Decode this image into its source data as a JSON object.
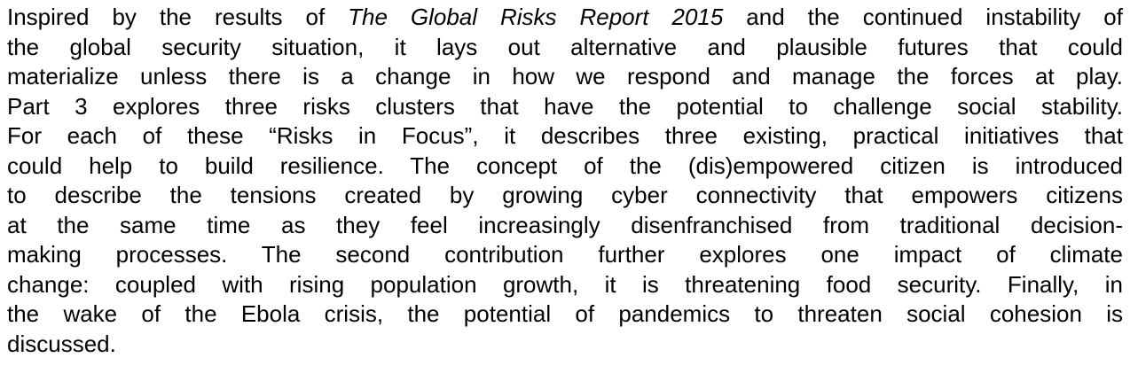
{
  "paragraph": {
    "lines": [
      [
        "Inspired by the results of ",
        "The Global Risks Report 2015",
        " and the continued instability of"
      ],
      "the global security situation, it lays out alternative and plausible futures that could",
      "materialize unless there is a change in how we respond and manage the forces at play.",
      "Part 3 explores three risks clusters that have the potential to challenge social stability.",
      "For each of these “Risks in Focus”, it describes three existing, practical initiatives that",
      "could help to build resilience. The concept of the (dis)empowered citizen is introduced",
      "to describe the tensions created by growing cyber connectivity that empowers citizens",
      "at the same time as they feel increasingly disenfranchised from traditional decision-",
      "making processes. The second contribution further explores one impact of climate",
      "change: coupled with rising population growth, it is threatening food security. Finally, in",
      "the wake of the Ebola crisis, the potential of pandemics to threaten social cohesion is",
      "discussed."
    ]
  }
}
